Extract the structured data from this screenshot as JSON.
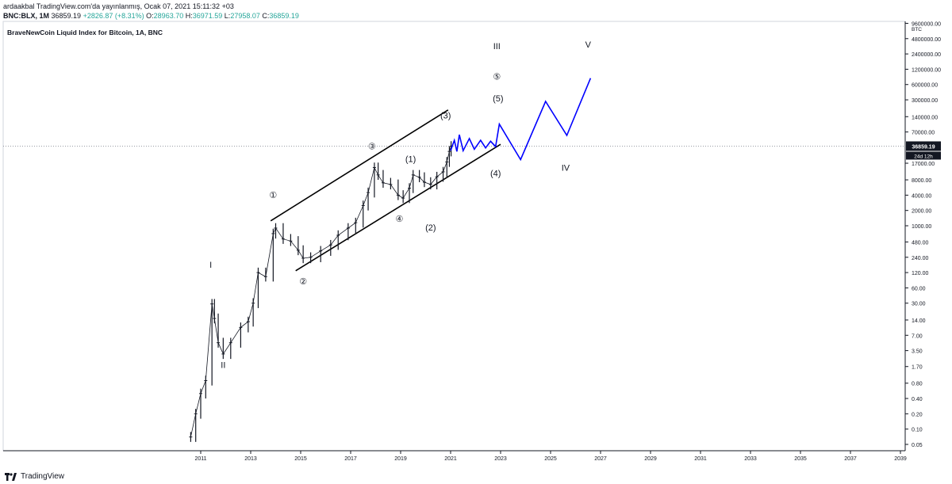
{
  "header": {
    "publisher": "ardaakbal",
    "published_text": "TradingView.com'da yayınlanmış, Ocak 07, 2021 15:11:32 +03",
    "symbol": "BNC:BLX, 1M",
    "price": "36859.19",
    "change": "+2826.87 (+8.31%)",
    "o_label": "O:",
    "o": "28963.70",
    "h_label": "H:",
    "h": "36971.59",
    "l_label": "L:",
    "l": "27958.07",
    "c_label": "C:",
    "c": "36859.19",
    "up_color": "#26a69a"
  },
  "chart_title": "BraveNewCoin Liquid Index for Bitcoin, 1A, BNC",
  "brand": "TradingView",
  "chart_data": {
    "type": "line",
    "title": "BraveNewCoin Liquid Index for Bitcoin, 1A, BNC",
    "scale": "log",
    "currency_label": "BTC",
    "y_ticks": [
      "9600000.00",
      "4800000.00",
      "2400000.00",
      "1200000.00",
      "600000.00",
      "300000.00",
      "140000.00",
      "70000.00",
      "17000.00",
      "8000.00",
      "4000.00",
      "2000.00",
      "1000.00",
      "480.00",
      "240.00",
      "120.00",
      "60.00",
      "30.00",
      "14.00",
      "7.00",
      "3.50",
      "1.70",
      "0.80",
      "0.40",
      "0.20",
      "0.10",
      "0.05"
    ],
    "y_tick_values": [
      9600000,
      4800000,
      2400000,
      1200000,
      600000,
      300000,
      140000,
      70000,
      17000,
      8000,
      4000,
      2000,
      1000,
      480,
      240,
      120,
      60,
      30,
      14,
      7,
      3.5,
      1.7,
      0.8,
      0.4,
      0.2,
      0.1,
      0.05
    ],
    "x_ticks": [
      "2011",
      "2013",
      "2015",
      "2017",
      "2019",
      "2021",
      "2023",
      "2025",
      "2027",
      "2029",
      "2031",
      "2033",
      "2035",
      "2037",
      "2039"
    ],
    "x_tick_years": [
      2011,
      2013,
      2015,
      2017,
      2019,
      2021,
      2023,
      2025,
      2027,
      2029,
      2031,
      2033,
      2035,
      2037,
      2039
    ],
    "last_price_label": "36859.19",
    "last_price_value": 36859.19,
    "countdown_label": "24d 12h",
    "price_series": [
      [
        2010.6,
        0.07
      ],
      [
        2010.8,
        0.2
      ],
      [
        2011.0,
        0.5
      ],
      [
        2011.2,
        0.9
      ],
      [
        2011.45,
        29
      ],
      [
        2011.55,
        15
      ],
      [
        2011.7,
        5
      ],
      [
        2011.9,
        3
      ],
      [
        2012.2,
        5
      ],
      [
        2012.6,
        10
      ],
      [
        2012.9,
        13
      ],
      [
        2013.1,
        30
      ],
      [
        2013.3,
        120
      ],
      [
        2013.6,
        100
      ],
      [
        2013.9,
        700
      ],
      [
        2014.0,
        900
      ],
      [
        2014.3,
        550
      ],
      [
        2014.6,
        500
      ],
      [
        2014.9,
        330
      ],
      [
        2015.1,
        230
      ],
      [
        2015.4,
        240
      ],
      [
        2015.8,
        320
      ],
      [
        2016.2,
        420
      ],
      [
        2016.5,
        650
      ],
      [
        2016.9,
        900
      ],
      [
        2017.2,
        1150
      ],
      [
        2017.5,
        2500
      ],
      [
        2017.7,
        4500
      ],
      [
        2017.95,
        14000
      ],
      [
        2018.1,
        10000
      ],
      [
        2018.3,
        7000
      ],
      [
        2018.6,
        6500
      ],
      [
        2018.9,
        4000
      ],
      [
        2019.1,
        3500
      ],
      [
        2019.35,
        5500
      ],
      [
        2019.5,
        10000
      ],
      [
        2019.75,
        9000
      ],
      [
        2019.95,
        7200
      ],
      [
        2020.2,
        6500
      ],
      [
        2020.45,
        9200
      ],
      [
        2020.7,
        11500
      ],
      [
        2020.85,
        18000
      ],
      [
        2020.95,
        29000
      ],
      [
        2021.02,
        36859.19
      ]
    ],
    "projection_path": [
      [
        2021.0,
        30000
      ],
      [
        2021.15,
        48000
      ],
      [
        2021.25,
        29000
      ],
      [
        2021.35,
        62000
      ],
      [
        2021.5,
        30000
      ],
      [
        2021.75,
        52000
      ],
      [
        2021.95,
        32000
      ],
      [
        2022.2,
        48000
      ],
      [
        2022.4,
        34000
      ],
      [
        2022.6,
        46000
      ],
      [
        2022.8,
        36000
      ],
      [
        2022.95,
        100000
      ],
      [
        2023.8,
        20000
      ],
      [
        2024.8,
        280000
      ],
      [
        2025.65,
        60000
      ],
      [
        2026.6,
        800000
      ]
    ],
    "channel": {
      "upper": [
        [
          2013.8,
          1250
        ],
        [
          2020.9,
          190000
        ]
      ],
      "lower": [
        [
          2014.8,
          130
        ],
        [
          2023.0,
          40000
        ]
      ]
    },
    "annotations": [
      {
        "text": "I",
        "x": 2011.4,
        "y": 150
      },
      {
        "text": "II",
        "x": 2011.9,
        "y": 1.6
      },
      {
        "text": "①",
        "x": 2013.9,
        "y": 3500
      },
      {
        "text": "②",
        "x": 2015.1,
        "y": 70
      },
      {
        "text": "③",
        "x": 2017.85,
        "y": 32000
      },
      {
        "text": "④",
        "x": 2018.95,
        "y": 1200
      },
      {
        "text": "(1)",
        "x": 2019.4,
        "y": 18000
      },
      {
        "text": "(2)",
        "x": 2020.2,
        "y": 800
      },
      {
        "text": "(3)",
        "x": 2020.8,
        "y": 130000
      },
      {
        "text": "(4)",
        "x": 2022.8,
        "y": 9500
      },
      {
        "text": "(5)",
        "x": 2022.9,
        "y": 280000
      },
      {
        "text": "⑤",
        "x": 2022.85,
        "y": 750000
      },
      {
        "text": "III",
        "x": 2022.85,
        "y": 3000000
      },
      {
        "text": "IV",
        "x": 2025.6,
        "y": 12000
      },
      {
        "text": "V",
        "x": 2026.5,
        "y": 3200000
      }
    ],
    "colors": {
      "price": "#131722",
      "projection": "#0000ff",
      "channel": "#000000",
      "grid": "#e0e3eb"
    }
  }
}
